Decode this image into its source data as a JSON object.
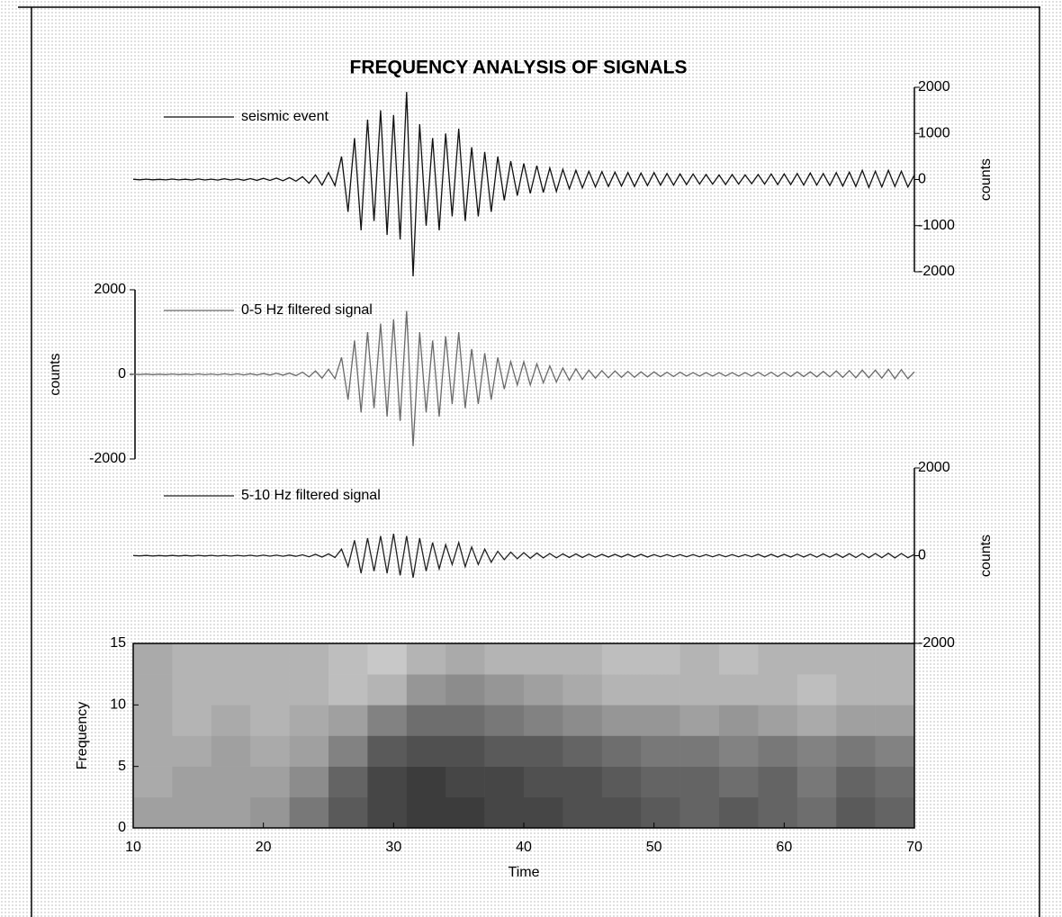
{
  "chart_data": [
    {
      "type": "line",
      "title": "FREQUENCY ANALYSIS OF SIGNALS",
      "ylabel": "counts",
      "xlim": [
        10,
        70
      ],
      "ylim": [
        -2000,
        2000
      ],
      "yticks": [
        2000,
        1000,
        0,
        -1000,
        -2000
      ],
      "x": [
        10,
        10.5,
        11,
        11.5,
        12,
        12.5,
        13,
        13.5,
        14,
        14.5,
        15,
        15.5,
        16,
        16.5,
        17,
        17.5,
        18,
        18.5,
        19,
        19.5,
        20,
        20.5,
        21,
        21.5,
        22,
        22.5,
        23,
        23.5,
        24,
        24.5,
        25,
        25.5,
        26,
        26.5,
        27,
        27.5,
        28,
        28.5,
        29,
        29.5,
        30,
        30.5,
        31,
        31.5,
        32,
        32.5,
        33,
        33.5,
        34,
        34.5,
        35,
        35.5,
        36,
        36.5,
        37,
        37.5,
        38,
        38.5,
        39,
        39.5,
        40,
        40.5,
        41,
        41.5,
        42,
        42.5,
        43,
        43.5,
        44,
        44.5,
        45,
        45.5,
        46,
        46.5,
        47,
        47.5,
        48,
        48.5,
        49,
        49.5,
        50,
        50.5,
        51,
        51.5,
        52,
        52.5,
        53,
        53.5,
        54,
        54.5,
        55,
        55.5,
        56,
        56.5,
        57,
        57.5,
        58,
        58.5,
        59,
        59.5,
        60,
        60.5,
        61,
        61.5,
        62,
        62.5,
        63,
        63.5,
        64,
        64.5,
        65,
        65.5,
        66,
        66.5,
        67,
        67.5,
        68,
        68.5,
        69,
        69.5,
        70
      ],
      "series": [
        {
          "name": "seismic event",
          "color": "#111111",
          "values": [
            5,
            -5,
            8,
            -6,
            4,
            -8,
            10,
            -7,
            6,
            -9,
            12,
            -10,
            8,
            -12,
            15,
            -10,
            12,
            -15,
            20,
            -18,
            25,
            -20,
            30,
            -25,
            40,
            -35,
            60,
            -80,
            100,
            -120,
            150,
            -130,
            500,
            -700,
            900,
            -1100,
            1300,
            -900,
            1500,
            -1200,
            1400,
            -1300,
            1900,
            -2100,
            1200,
            -1000,
            900,
            -1100,
            1000,
            -800,
            1100,
            -900,
            700,
            -800,
            600,
            -700,
            500,
            -450,
            400,
            -350,
            350,
            -300,
            300,
            -280,
            250,
            -260,
            220,
            -200,
            200,
            -180,
            180,
            -160,
            170,
            -150,
            160,
            -140,
            150,
            -150,
            140,
            -130,
            150,
            -120,
            130,
            -120,
            120,
            -110,
            120,
            -100,
            110,
            -100,
            100,
            -110,
            110,
            -100,
            100,
            -90,
            110,
            -100,
            120,
            -110,
            120,
            -110,
            130,
            -120,
            140,
            -120,
            130,
            -130,
            150,
            -140,
            160,
            -150,
            200,
            -170,
            180,
            -160,
            200,
            -150,
            180,
            -160,
            100
          ]
        }
      ]
    },
    {
      "type": "line",
      "ylabel": "counts",
      "xlim": [
        10,
        70
      ],
      "ylim": [
        -2000,
        2000
      ],
      "yticks": [
        2000,
        0,
        -2000
      ],
      "x": [
        10,
        10.5,
        11,
        11.5,
        12,
        12.5,
        13,
        13.5,
        14,
        14.5,
        15,
        15.5,
        16,
        16.5,
        17,
        17.5,
        18,
        18.5,
        19,
        19.5,
        20,
        20.5,
        21,
        21.5,
        22,
        22.5,
        23,
        23.5,
        24,
        24.5,
        25,
        25.5,
        26,
        26.5,
        27,
        27.5,
        28,
        28.5,
        29,
        29.5,
        30,
        30.5,
        31,
        31.5,
        32,
        32.5,
        33,
        33.5,
        34,
        34.5,
        35,
        35.5,
        36,
        36.5,
        37,
        37.5,
        38,
        38.5,
        39,
        39.5,
        40,
        40.5,
        41,
        41.5,
        42,
        42.5,
        43,
        43.5,
        44,
        44.5,
        45,
        45.5,
        46,
        46.5,
        47,
        47.5,
        48,
        48.5,
        49,
        49.5,
        50,
        50.5,
        51,
        51.5,
        52,
        52.5,
        53,
        53.5,
        54,
        54.5,
        55,
        55.5,
        56,
        56.5,
        57,
        57.5,
        58,
        58.5,
        59,
        59.5,
        60,
        60.5,
        61,
        61.5,
        62,
        62.5,
        63,
        63.5,
        64,
        64.5,
        65,
        65.5,
        66,
        66.5,
        67,
        67.5,
        68,
        68.5,
        69,
        69.5,
        70
      ],
      "series": [
        {
          "name": "0-5 Hz filtered signal",
          "color": "#6a6a6a",
          "values": [
            5,
            -5,
            6,
            -6,
            5,
            -7,
            8,
            -6,
            6,
            -8,
            10,
            -8,
            8,
            -10,
            12,
            -10,
            12,
            -12,
            15,
            -15,
            20,
            -18,
            25,
            -20,
            30,
            -30,
            50,
            -60,
            80,
            -90,
            120,
            -100,
            400,
            -600,
            800,
            -900,
            1000,
            -800,
            1200,
            -1000,
            1300,
            -1100,
            1500,
            -1700,
            1000,
            -900,
            800,
            -1000,
            900,
            -700,
            1000,
            -800,
            600,
            -700,
            500,
            -600,
            400,
            -350,
            300,
            -250,
            300,
            -250,
            250,
            -200,
            200,
            -180,
            150,
            -140,
            130,
            -120,
            100,
            -90,
            90,
            -80,
            80,
            -70,
            70,
            -70,
            60,
            -60,
            60,
            -50,
            50,
            -50,
            50,
            -40,
            40,
            -40,
            40,
            -40,
            40,
            -40,
            40,
            -40,
            40,
            -40,
            50,
            -40,
            50,
            -50,
            50,
            -50,
            60,
            -50,
            60,
            -60,
            70,
            -60,
            80,
            -70,
            90,
            -80,
            100,
            -80,
            100,
            -90,
            120,
            -100,
            110,
            -100,
            60
          ]
        }
      ]
    },
    {
      "type": "line",
      "ylabel": "counts",
      "xlim": [
        10,
        70
      ],
      "ylim": [
        -2000,
        2000
      ],
      "yticks": [
        2000,
        0,
        -2000
      ],
      "x": [
        10,
        10.5,
        11,
        11.5,
        12,
        12.5,
        13,
        13.5,
        14,
        14.5,
        15,
        15.5,
        16,
        16.5,
        17,
        17.5,
        18,
        18.5,
        19,
        19.5,
        20,
        20.5,
        21,
        21.5,
        22,
        22.5,
        23,
        23.5,
        24,
        24.5,
        25,
        25.5,
        26,
        26.5,
        27,
        27.5,
        28,
        28.5,
        29,
        29.5,
        30,
        30.5,
        31,
        31.5,
        32,
        32.5,
        33,
        33.5,
        34,
        34.5,
        35,
        35.5,
        36,
        36.5,
        37,
        37.5,
        38,
        38.5,
        39,
        39.5,
        40,
        40.5,
        41,
        41.5,
        42,
        42.5,
        43,
        43.5,
        44,
        44.5,
        45,
        45.5,
        46,
        46.5,
        47,
        47.5,
        48,
        48.5,
        49,
        49.5,
        50,
        50.5,
        51,
        51.5,
        52,
        52.5,
        53,
        53.5,
        54,
        54.5,
        55,
        55.5,
        56,
        56.5,
        57,
        57.5,
        58,
        58.5,
        59,
        59.5,
        60,
        60.5,
        61,
        61.5,
        62,
        62.5,
        63,
        63.5,
        64,
        64.5,
        65,
        65.5,
        66,
        66.5,
        67,
        67.5,
        68,
        68.5,
        69,
        69.5,
        70
      ],
      "series": [
        {
          "name": "5-10 Hz filtered signal",
          "color": "#222222",
          "values": [
            5,
            -5,
            6,
            -6,
            5,
            -6,
            7,
            -6,
            6,
            -7,
            8,
            -7,
            8,
            -8,
            9,
            -8,
            9,
            -9,
            10,
            -10,
            12,
            -10,
            12,
            -12,
            15,
            -15,
            20,
            -25,
            30,
            -30,
            40,
            -40,
            150,
            -250,
            350,
            -400,
            400,
            -350,
            450,
            -400,
            500,
            -450,
            450,
            -500,
            400,
            -350,
            300,
            -300,
            250,
            -200,
            300,
            -250,
            200,
            -200,
            150,
            -150,
            100,
            -90,
            80,
            -70,
            70,
            -60,
            60,
            -50,
            50,
            -50,
            40,
            -40,
            40,
            -40,
            35,
            -35,
            30,
            -30,
            30,
            -30,
            30,
            -30,
            30,
            -30,
            25,
            -25,
            25,
            -25,
            25,
            -25,
            25,
            -25,
            25,
            -25,
            25,
            -25,
            25,
            -25,
            25,
            -25,
            30,
            -30,
            30,
            -30,
            30,
            -30,
            35,
            -30,
            35,
            -35,
            40,
            -35,
            40,
            -40,
            45,
            -40,
            50,
            -45,
            50,
            -45,
            55,
            -50,
            50,
            -45,
            30
          ]
        }
      ]
    },
    {
      "type": "heatmap",
      "xlabel": "Time",
      "ylabel": "Frequency",
      "xlim": [
        10,
        70
      ],
      "ylim": [
        0,
        15
      ],
      "xticks": [
        10,
        20,
        30,
        40,
        50,
        60,
        70
      ],
      "yticks": [
        0,
        5,
        10,
        15
      ],
      "xbins": [
        10,
        13,
        16,
        19,
        22,
        25,
        28,
        31,
        34,
        37,
        40,
        43,
        46,
        49,
        52,
        55,
        58,
        61,
        64,
        67,
        70
      ],
      "ybins": [
        0,
        2.5,
        5,
        7.5,
        10,
        12.5,
        15
      ],
      "z": [
        [
          0.4,
          0.4,
          0.4,
          0.45,
          0.6,
          0.75,
          0.85,
          0.9,
          0.9,
          0.85,
          0.85,
          0.8,
          0.8,
          0.75,
          0.7,
          0.75,
          0.7,
          0.65,
          0.75,
          0.7
        ],
        [
          0.35,
          0.4,
          0.4,
          0.4,
          0.5,
          0.7,
          0.85,
          0.9,
          0.85,
          0.85,
          0.8,
          0.8,
          0.75,
          0.7,
          0.7,
          0.65,
          0.7,
          0.6,
          0.7,
          0.65
        ],
        [
          0.35,
          0.35,
          0.4,
          0.35,
          0.4,
          0.55,
          0.75,
          0.8,
          0.8,
          0.75,
          0.75,
          0.7,
          0.65,
          0.6,
          0.6,
          0.55,
          0.6,
          0.55,
          0.6,
          0.55
        ],
        [
          0.35,
          0.3,
          0.35,
          0.3,
          0.35,
          0.4,
          0.55,
          0.65,
          0.65,
          0.6,
          0.55,
          0.5,
          0.45,
          0.45,
          0.4,
          0.45,
          0.4,
          0.35,
          0.4,
          0.4
        ],
        [
          0.35,
          0.3,
          0.3,
          0.3,
          0.3,
          0.25,
          0.3,
          0.45,
          0.5,
          0.45,
          0.4,
          0.35,
          0.3,
          0.3,
          0.3,
          0.3,
          0.3,
          0.25,
          0.3,
          0.3
        ],
        [
          0.35,
          0.3,
          0.3,
          0.3,
          0.3,
          0.25,
          0.2,
          0.3,
          0.35,
          0.3,
          0.3,
          0.3,
          0.25,
          0.25,
          0.3,
          0.25,
          0.3,
          0.3,
          0.3,
          0.3
        ]
      ]
    }
  ]
}
